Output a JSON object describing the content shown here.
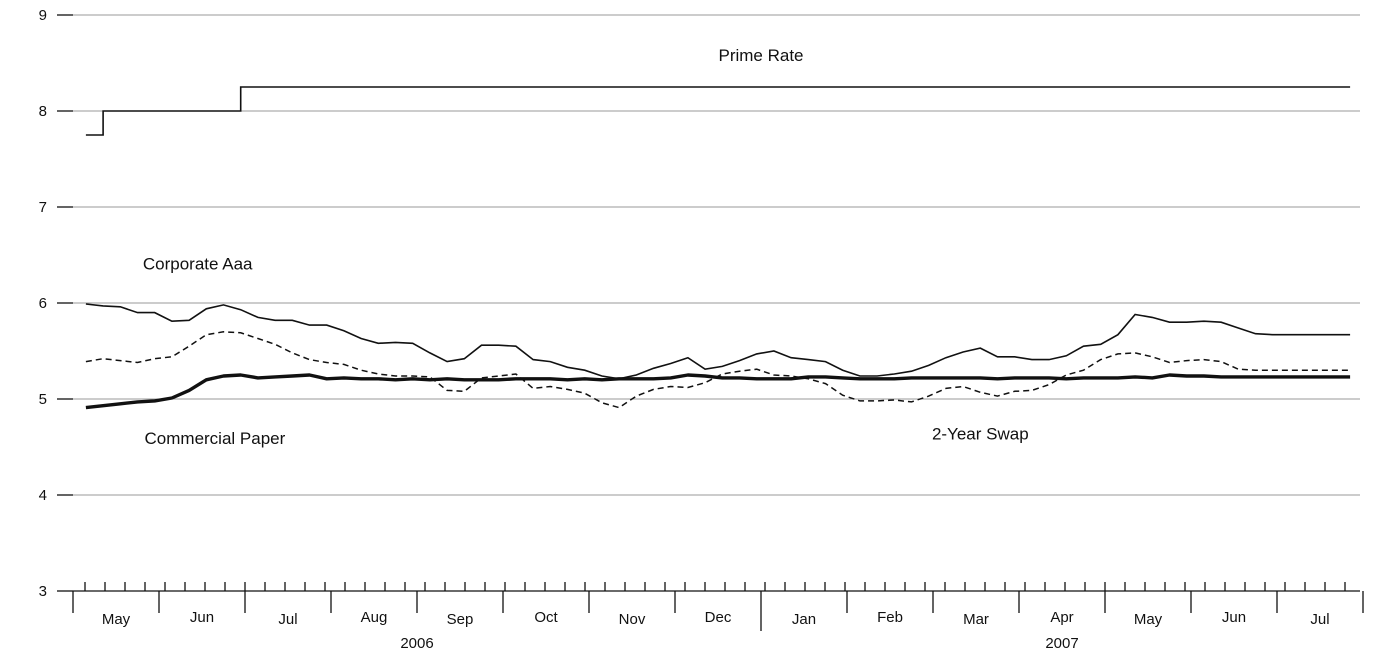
{
  "chart_data": {
    "type": "line",
    "title": "",
    "xlabel": "",
    "ylabel": "",
    "ylim": [
      3,
      9
    ],
    "y_ticks": [
      "3",
      "4",
      "5",
      "6",
      "7",
      "8",
      "9"
    ],
    "grid": true,
    "x_axis": {
      "months": [
        {
          "label": "May",
          "x": 0.5
        },
        {
          "label": "Jun",
          "x": 1.5
        },
        {
          "label": "Jul",
          "x": 2.5
        },
        {
          "label": "Aug",
          "x": 3.5
        },
        {
          "label": "Sep",
          "x": 4.5
        },
        {
          "label": "Oct",
          "x": 5.5
        },
        {
          "label": "Nov",
          "x": 6.5
        },
        {
          "label": "Dec",
          "x": 7.5
        },
        {
          "label": "Jan",
          "x": 8.5
        },
        {
          "label": "Feb",
          "x": 9.5
        },
        {
          "label": "Mar",
          "x": 10.5
        },
        {
          "label": "Apr",
          "x": 11.5
        },
        {
          "label": "May",
          "x": 12.5
        },
        {
          "label": "Jun",
          "x": 13.5
        },
        {
          "label": "Jul",
          "x": 14.5
        }
      ],
      "years": [
        {
          "label": "2006",
          "x": 4
        },
        {
          "label": "2007",
          "x": 11.5
        }
      ],
      "range": [
        0,
        15
      ]
    },
    "series": [
      {
        "name": "Prime Rate",
        "style": "thin-solid",
        "x": [
          0.15,
          0.35,
          0.35,
          1.95,
          1.95,
          14.85
        ],
        "values": [
          7.75,
          7.75,
          8.0,
          8.0,
          8.25,
          8.25
        ]
      },
      {
        "name": "Corporate Aaa",
        "style": "thin-solid",
        "x": [
          0.15,
          0.35,
          0.55,
          0.75,
          0.95,
          1.15,
          1.35,
          1.55,
          1.75,
          1.95,
          2.15,
          2.35,
          2.55,
          2.75,
          2.95,
          3.15,
          3.35,
          3.55,
          3.75,
          3.95,
          4.15,
          4.35,
          4.55,
          4.75,
          4.95,
          5.15,
          5.35,
          5.55,
          5.75,
          5.95,
          6.15,
          6.35,
          6.55,
          6.75,
          6.95,
          7.15,
          7.35,
          7.55,
          7.75,
          7.95,
          8.15,
          8.35,
          8.55,
          8.75,
          8.95,
          9.15,
          9.35,
          9.55,
          9.75,
          9.95,
          10.15,
          10.35,
          10.55,
          10.75,
          10.95,
          11.15,
          11.35,
          11.55,
          11.75,
          11.95,
          12.15,
          12.35,
          12.55,
          12.75,
          12.95,
          13.15,
          13.35,
          13.55,
          13.75,
          13.95,
          14.15,
          14.35,
          14.55,
          14.85
        ],
        "values": [
          5.99,
          5.97,
          5.96,
          5.9,
          5.9,
          5.81,
          5.82,
          5.94,
          5.98,
          5.93,
          5.85,
          5.82,
          5.82,
          5.77,
          5.77,
          5.71,
          5.63,
          5.58,
          5.59,
          5.58,
          5.48,
          5.39,
          5.42,
          5.56,
          5.56,
          5.55,
          5.41,
          5.39,
          5.33,
          5.3,
          5.24,
          5.21,
          5.25,
          5.32,
          5.37,
          5.43,
          5.31,
          5.34,
          5.4,
          5.47,
          5.5,
          5.43,
          5.41,
          5.39,
          5.3,
          5.24,
          5.24,
          5.26,
          5.29,
          5.35,
          5.43,
          5.49,
          5.53,
          5.44,
          5.44,
          5.41,
          5.41,
          5.45,
          5.55,
          5.57,
          5.67,
          5.88,
          5.85,
          5.8,
          5.8,
          5.81,
          5.8,
          5.74,
          5.68,
          5.67,
          5.67,
          5.67,
          5.67,
          5.67
        ]
      },
      {
        "name": "2-Year Swap",
        "style": "dashed",
        "x": [
          0.15,
          0.35,
          0.55,
          0.75,
          0.95,
          1.15,
          1.35,
          1.55,
          1.75,
          1.95,
          2.15,
          2.35,
          2.55,
          2.75,
          2.95,
          3.15,
          3.35,
          3.55,
          3.75,
          3.95,
          4.15,
          4.35,
          4.55,
          4.75,
          4.95,
          5.15,
          5.35,
          5.55,
          5.75,
          5.95,
          6.15,
          6.35,
          6.55,
          6.75,
          6.95,
          7.15,
          7.35,
          7.55,
          7.75,
          7.95,
          8.15,
          8.35,
          8.55,
          8.75,
          8.95,
          9.15,
          9.35,
          9.55,
          9.75,
          9.95,
          10.15,
          10.35,
          10.55,
          10.75,
          10.95,
          11.15,
          11.35,
          11.55,
          11.75,
          11.95,
          12.15,
          12.35,
          12.55,
          12.75,
          12.95,
          13.15,
          13.35,
          13.55,
          13.75,
          13.95,
          14.15,
          14.35,
          14.55,
          14.85
        ],
        "values": [
          5.39,
          5.42,
          5.4,
          5.38,
          5.42,
          5.44,
          5.55,
          5.67,
          5.7,
          5.69,
          5.63,
          5.57,
          5.48,
          5.41,
          5.38,
          5.36,
          5.3,
          5.26,
          5.24,
          5.24,
          5.23,
          5.09,
          5.08,
          5.22,
          5.24,
          5.26,
          5.11,
          5.13,
          5.1,
          5.06,
          4.96,
          4.91,
          5.03,
          5.1,
          5.13,
          5.12,
          5.17,
          5.26,
          5.29,
          5.31,
          5.25,
          5.24,
          5.21,
          5.16,
          5.04,
          4.98,
          4.98,
          4.99,
          4.97,
          5.03,
          5.11,
          5.13,
          5.07,
          5.03,
          5.08,
          5.09,
          5.15,
          5.25,
          5.3,
          5.41,
          5.47,
          5.48,
          5.44,
          5.38,
          5.4,
          5.41,
          5.39,
          5.31,
          5.3,
          5.3,
          5.3,
          5.3,
          5.3,
          5.3
        ]
      },
      {
        "name": "Commercial Paper",
        "style": "thick-solid",
        "x": [
          0.15,
          0.35,
          0.55,
          0.75,
          0.95,
          1.15,
          1.35,
          1.55,
          1.75,
          1.95,
          2.15,
          2.35,
          2.55,
          2.75,
          2.95,
          3.15,
          3.35,
          3.55,
          3.75,
          3.95,
          4.15,
          4.35,
          4.55,
          4.75,
          4.95,
          5.15,
          5.35,
          5.55,
          5.75,
          5.95,
          6.15,
          6.35,
          6.55,
          6.75,
          6.95,
          7.15,
          7.35,
          7.55,
          7.75,
          7.95,
          8.15,
          8.35,
          8.55,
          8.75,
          8.95,
          9.15,
          9.35,
          9.55,
          9.75,
          9.95,
          10.15,
          10.35,
          10.55,
          10.75,
          10.95,
          11.15,
          11.35,
          11.55,
          11.75,
          11.95,
          12.15,
          12.35,
          12.55,
          12.75,
          12.95,
          13.15,
          13.35,
          13.55,
          13.75,
          13.95,
          14.15,
          14.35,
          14.55,
          14.85
        ],
        "values": [
          4.91,
          4.93,
          4.95,
          4.97,
          4.98,
          5.01,
          5.09,
          5.2,
          5.24,
          5.25,
          5.22,
          5.23,
          5.24,
          5.25,
          5.21,
          5.22,
          5.21,
          5.21,
          5.2,
          5.21,
          5.2,
          5.21,
          5.2,
          5.2,
          5.2,
          5.21,
          5.21,
          5.21,
          5.2,
          5.21,
          5.2,
          5.21,
          5.21,
          5.21,
          5.22,
          5.25,
          5.24,
          5.22,
          5.22,
          5.21,
          5.21,
          5.21,
          5.23,
          5.23,
          5.22,
          5.21,
          5.21,
          5.21,
          5.22,
          5.22,
          5.22,
          5.22,
          5.22,
          5.21,
          5.22,
          5.22,
          5.22,
          5.21,
          5.22,
          5.22,
          5.22,
          5.23,
          5.22,
          5.25,
          5.24,
          5.24,
          5.23,
          5.23,
          5.23,
          5.23,
          5.23,
          5.23,
          5.23,
          5.23
        ]
      }
    ],
    "annotations": [
      {
        "series": "Prime Rate",
        "text": "Prime Rate",
        "x": 8.0,
        "y": 8.52
      },
      {
        "series": "Corporate Aaa",
        "text": "Corporate Aaa",
        "x": 1.45,
        "y": 6.35
      },
      {
        "series": "Commercial Paper",
        "text": "Commercial Paper",
        "x": 1.65,
        "y": 4.53
      },
      {
        "series": "2-Year Swap",
        "text": "2-Year Swap",
        "x": 10.55,
        "y": 4.58
      }
    ]
  }
}
